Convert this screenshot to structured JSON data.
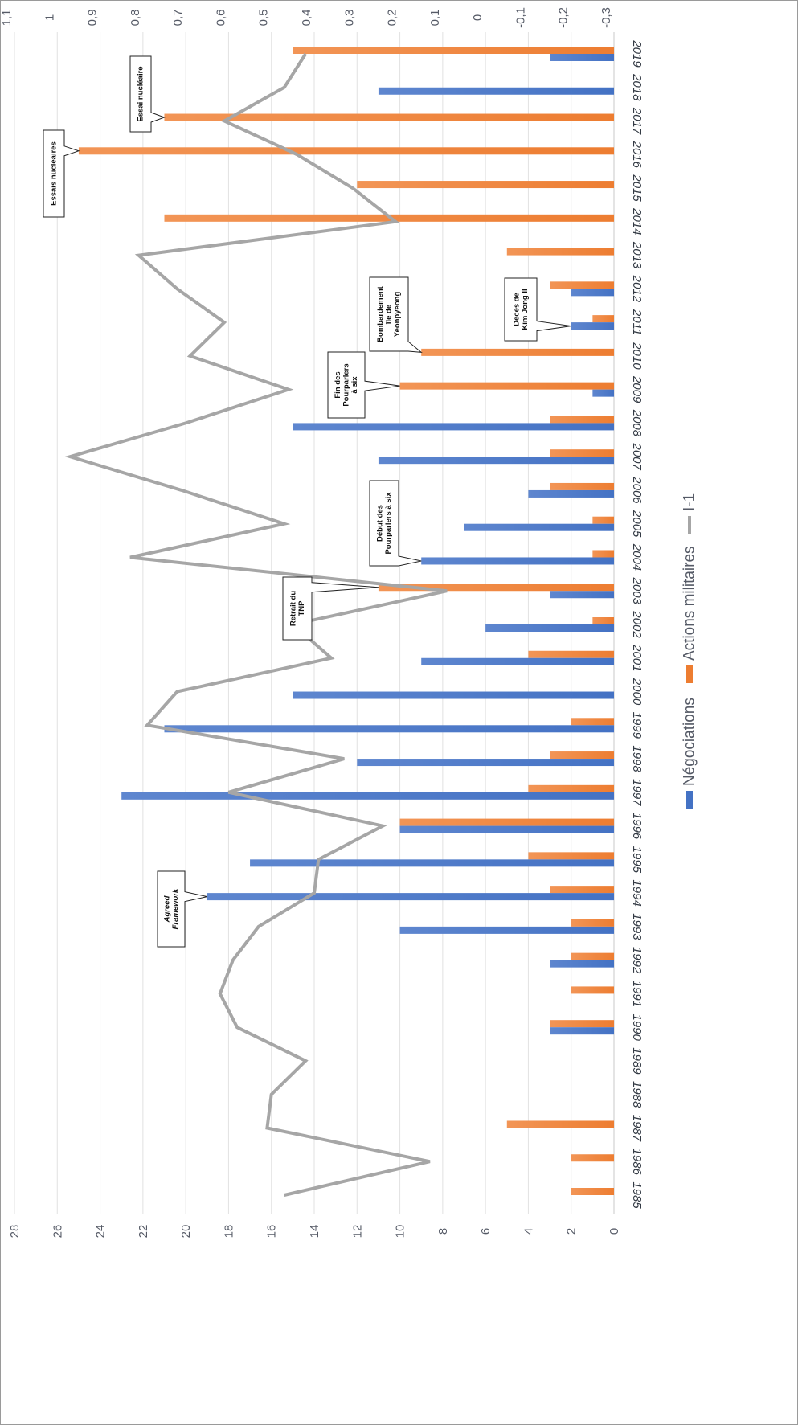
{
  "chart_data": {
    "type": "bar",
    "orientation": "rotated-90",
    "categories": [
      "1985",
      "1986",
      "1987",
      "1988",
      "1989",
      "1990",
      "1991",
      "1992",
      "1993",
      "1994",
      "1995",
      "1996",
      "1997",
      "1998",
      "1999",
      "2000",
      "2001",
      "2002",
      "2003",
      "2004",
      "2005",
      "2006",
      "2007",
      "2008",
      "2009",
      "2010",
      "2011",
      "2012",
      "2013",
      "2014",
      "2015",
      "2016",
      "2017",
      "2018",
      "2019"
    ],
    "series": [
      {
        "name": "Négociations",
        "kind": "bar",
        "axis": "primary",
        "color": "#4472c4",
        "values": [
          0,
          0,
          0,
          0,
          0,
          3,
          0,
          3,
          10,
          19,
          17,
          10,
          23,
          12,
          21,
          15,
          9,
          6,
          3,
          9,
          7,
          4,
          11,
          15,
          1,
          0,
          2,
          2,
          0,
          0,
          0,
          0,
          0,
          11,
          3
        ]
      },
      {
        "name": "Actions militaires",
        "kind": "bar",
        "axis": "primary",
        "color": "#ed7d31",
        "values": [
          2,
          2,
          5,
          0,
          0,
          3,
          2,
          2,
          2,
          3,
          4,
          10,
          4,
          3,
          2,
          0,
          4,
          1,
          11,
          1,
          1,
          3,
          3,
          3,
          10,
          9,
          1,
          3,
          5,
          21,
          12,
          25,
          21,
          0,
          15
        ]
      },
      {
        "name": "I-1",
        "kind": "line",
        "axis": "secondary",
        "color": "#a6a6a6",
        "values": [
          0.47,
          0.13,
          0.51,
          0.5,
          0.42,
          0.58,
          0.62,
          0.59,
          0.53,
          0.4,
          0.39,
          0.24,
          0.6,
          0.33,
          0.79,
          0.72,
          0.36,
          0.45,
          0.09,
          0.83,
          0.47,
          0.71,
          0.97,
          0.7,
          0.46,
          0.69,
          0.61,
          0.72,
          0.81,
          0.21,
          0.31,
          0.44,
          0.61,
          0.47,
          0.42
        ]
      }
    ],
    "primary_axis": {
      "min": 0,
      "max": 28,
      "step": 2,
      "ticks": [
        "0",
        "2",
        "4",
        "6",
        "8",
        "10",
        "12",
        "14",
        "16",
        "18",
        "20",
        "22",
        "24",
        "26",
        "28"
      ]
    },
    "secondary_axis": {
      "min": -0.3,
      "max": 1.1,
      "step": 0.1,
      "ticks": [
        "-0,3",
        "-0,2",
        "-0,1",
        "0",
        "0,1",
        "0,2",
        "0,3",
        "0,4",
        "0,5",
        "0,6",
        "0,7",
        "0,8",
        "0,9",
        "1",
        "1,1"
      ]
    },
    "grid": true,
    "legend": {
      "placement": "bottom",
      "items": [
        "Négociations",
        "Actions militaires",
        "I-1"
      ]
    },
    "annotations": [
      {
        "year": "1994",
        "series": "Négociations",
        "lines": [
          "Agreed",
          "Framework"
        ],
        "italic": true
      },
      {
        "year": "2003",
        "series": "Actions militaires",
        "lines": [
          "Retrait du",
          "TNP"
        ]
      },
      {
        "year": "2004",
        "series": "Négociations",
        "lines": [
          "Début des",
          "Pourparlers à six"
        ]
      },
      {
        "year": "2009",
        "series": "Actions militaires",
        "lines": [
          "Fin des",
          "Pourparlers",
          "à six"
        ]
      },
      {
        "year": "2010",
        "series": "Actions militaires",
        "lines": [
          "Bombardement",
          "île de",
          "Yeonpyeong"
        ]
      },
      {
        "year": "2011",
        "series": "Négociations",
        "lines": [
          "Décès de",
          "Kim Jong Il"
        ]
      },
      {
        "year": "2016",
        "series": "Actions militaires",
        "lines": [
          "Essais nucléaires"
        ]
      },
      {
        "year": "2017",
        "series": "Actions militaires",
        "lines": [
          "Essai nucléaire"
        ]
      }
    ]
  }
}
